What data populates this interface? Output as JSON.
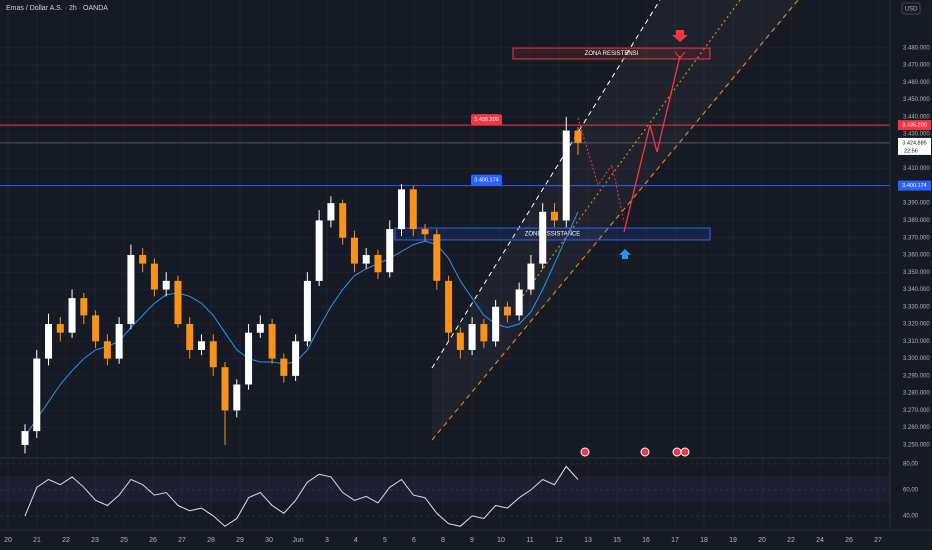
{
  "chart_data": {
    "type": "candlestick",
    "title": "Emas / Dollar A.S. · 2h · OANDA",
    "currency": "USD",
    "x_labels": [
      "20",
      "21",
      "22",
      "23",
      "25",
      "26",
      "27",
      "28",
      "29",
      "30",
      "Jun",
      "3",
      "4",
      "5",
      "6",
      "8",
      "9",
      "10",
      "11",
      "12",
      "13",
      "15",
      "16",
      "17",
      "18",
      "19",
      "20",
      "22",
      "24",
      "26",
      "27"
    ],
    "up_color": "#ffffff",
    "down_color": "#f7931a",
    "candles": {
      "open": [
        3250000,
        3258000,
        3300000,
        3320000,
        3315000,
        3335000,
        3325000,
        3310000,
        3300000,
        3320000,
        3360000,
        3355000,
        3340000,
        3345000,
        3320000,
        3305000,
        3310000,
        3295000,
        3270000,
        3285000,
        3315000,
        3320000,
        3300000,
        3290000,
        3310000,
        3345000,
        3380000,
        3390000,
        3370000,
        3355000,
        3360000,
        3350000,
        3375000,
        3398000,
        3375000,
        3372000,
        3345000,
        3315000,
        3305000,
        3320000,
        3310000,
        3330000,
        3325000,
        3340000,
        3355000,
        3385000,
        3380000,
        3432000
      ],
      "high": [
        3262000,
        3305000,
        3326000,
        3324000,
        3340000,
        3338000,
        3328000,
        3314000,
        3324000,
        3366000,
        3364000,
        3358000,
        3350000,
        3348000,
        3324000,
        3314000,
        3314000,
        3298000,
        3288000,
        3320000,
        3325000,
        3323000,
        3303000,
        3314000,
        3350000,
        3386000,
        3394000,
        3392000,
        3374000,
        3364000,
        3363000,
        3380000,
        3401000,
        3400000,
        3378000,
        3375000,
        3348000,
        3318000,
        3324000,
        3323000,
        3334000,
        3333000,
        3344000,
        3360000,
        3390000,
        3390000,
        3440000,
        3434000
      ],
      "low": [
        3245000,
        3254000,
        3296000,
        3310000,
        3312000,
        3320000,
        3306000,
        3296000,
        3297000,
        3317000,
        3350000,
        3336000,
        3336000,
        3318000,
        3300000,
        3302000,
        3290000,
        3250000,
        3266000,
        3282000,
        3312000,
        3297000,
        3286000,
        3287000,
        3307000,
        3342000,
        3376000,
        3366000,
        3350000,
        3352000,
        3346000,
        3347000,
        3371000,
        3371000,
        3368000,
        3340000,
        3310000,
        3300000,
        3302000,
        3306000,
        3307000,
        3321000,
        3322000,
        3337000,
        3352000,
        3376000,
        3376000,
        3418000
      ],
      "close": [
        3258000,
        3300000,
        3320000,
        3315000,
        3335000,
        3325000,
        3310000,
        3300000,
        3320000,
        3360000,
        3355000,
        3340000,
        3345000,
        3320000,
        3305000,
        3310000,
        3295000,
        3270000,
        3285000,
        3315000,
        3320000,
        3300000,
        3290000,
        3310000,
        3345000,
        3380000,
        3390000,
        3370000,
        3355000,
        3360000,
        3350000,
        3375000,
        3398000,
        3375000,
        3372000,
        3345000,
        3315000,
        3305000,
        3320000,
        3310000,
        3330000,
        3325000,
        3340000,
        3355000,
        3385000,
        3380000,
        3432000,
        3424885
      ]
    },
    "ma": {
      "color": "#2196f3",
      "values": [
        3255000,
        3265000,
        3275000,
        3285000,
        3293000,
        3300000,
        3305000,
        3307000,
        3310000,
        3318000,
        3325000,
        3332000,
        3337000,
        3338000,
        3336000,
        3332000,
        3325000,
        3315000,
        3305000,
        3300000,
        3298000,
        3298000,
        3297000,
        3298000,
        3305000,
        3318000,
        3330000,
        3340000,
        3348000,
        3352000,
        3355000,
        3358000,
        3362000,
        3366000,
        3368000,
        3366000,
        3358000,
        3345000,
        3335000,
        3325000,
        3320000,
        3318000,
        3320000,
        3327000,
        3340000,
        3355000,
        3370000,
        3385000
      ]
    },
    "ylim": [
      3242430,
      3507640
    ],
    "yticks": [
      {
        "value": 3480000,
        "label": "3.480.000"
      },
      {
        "value": 3470000,
        "label": "3.470.000"
      },
      {
        "value": 3460000,
        "label": "3.460.000"
      },
      {
        "value": 3450000,
        "label": "3.450.000"
      },
      {
        "value": 3440000,
        "label": "3.440.000"
      },
      {
        "value": 3430000,
        "label": "3.430.000"
      },
      {
        "value": 3410000,
        "label": "3.410.000"
      },
      {
        "value": 3390000,
        "label": "3.390.000"
      },
      {
        "value": 3380000,
        "label": "3.380.000"
      },
      {
        "value": 3370000,
        "label": "3.370.000"
      },
      {
        "value": 3360000,
        "label": "3.360.000"
      },
      {
        "value": 3350000,
        "label": "3.350.000"
      },
      {
        "value": 3340000,
        "label": "3.340.000"
      },
      {
        "value": 3330000,
        "label": "3.330.000"
      },
      {
        "value": 3320000,
        "label": "3.320.000"
      },
      {
        "value": 3310000,
        "label": "3.310.000"
      },
      {
        "value": 3300000,
        "label": "3.300.000"
      },
      {
        "value": 3290000,
        "label": "3.290.000"
      },
      {
        "value": 3280000,
        "label": "3.280.000"
      },
      {
        "value": 3270000,
        "label": "3.270.000"
      },
      {
        "value": 3260000,
        "label": "3.260.000"
      },
      {
        "value": 3250000,
        "label": "3.250.000"
      }
    ],
    "hlines": [
      {
        "value": 3435200,
        "label": "3.435.200",
        "color": "#f23645"
      },
      {
        "value": 3400174,
        "label": "3.400.174",
        "color": "#2962ff"
      }
    ],
    "last_price": {
      "value": 3424885,
      "label": "3.424.885",
      "countdown": "22:56"
    },
    "zones": [
      {
        "label": "ZONA RESISTENSI",
        "top": 3479800,
        "bottom": 3473500,
        "color": "#f23645"
      },
      {
        "label": "ZONE ASSISTANCE",
        "top": 3375600,
        "bottom": 3368700,
        "color": "#2962ff"
      }
    ],
    "rsi": {
      "color": "#e0e3eb",
      "values": [
        40,
        62,
        68,
        64,
        70,
        62,
        52,
        48,
        56,
        68,
        64,
        56,
        58,
        48,
        44,
        46,
        40,
        32,
        38,
        54,
        58,
        48,
        42,
        52,
        66,
        72,
        70,
        58,
        52,
        55,
        50,
        62,
        68,
        56,
        54,
        42,
        34,
        32,
        40,
        38,
        48,
        46,
        54,
        60,
        68,
        64,
        78,
        68
      ]
    },
    "rsi_ylim": [
      31.5,
      83
    ],
    "rsi_yticks": [
      {
        "value": 80,
        "label": "80,00"
      },
      {
        "value": 60,
        "label": "60,00"
      },
      {
        "value": 40,
        "label": "40,00"
      }
    ]
  }
}
